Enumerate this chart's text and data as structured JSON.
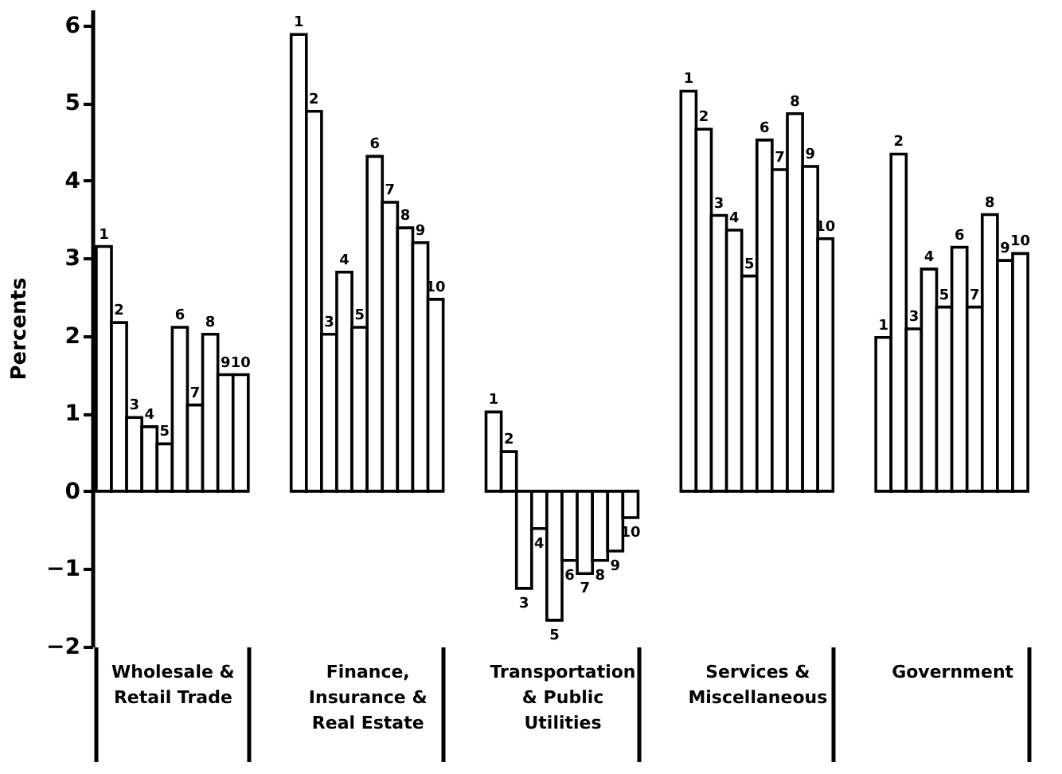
{
  "chart_data": {
    "type": "bar",
    "ylabel": "Percents",
    "categories": [
      "Wholesale & Retail Trade",
      "Finance, Insurance & Real Estate",
      "Transportation & Public Utilities",
      "Services & Miscellaneous",
      "Government"
    ],
    "series": [
      {
        "name": "1",
        "color": "#ffffff",
        "values": [
          3.15,
          5.88,
          1.02,
          5.15,
          1.98
        ]
      },
      {
        "name": "2",
        "color": "#ffffff",
        "values": [
          2.17,
          4.89,
          0.51,
          4.66,
          4.34
        ]
      },
      {
        "name": "3",
        "color": "#ffffff",
        "values": [
          0.95,
          2.02,
          -1.25,
          3.55,
          2.09
        ]
      },
      {
        "name": "4",
        "color": "#ffffff",
        "values": [
          0.83,
          2.82,
          -0.48,
          3.36,
          2.86
        ]
      },
      {
        "name": "5",
        "color": "#ffffff",
        "values": [
          0.61,
          2.11,
          -1.66,
          2.77,
          2.37
        ]
      },
      {
        "name": "6",
        "color": "#ffffff",
        "values": [
          2.11,
          4.31,
          -0.89,
          4.52,
          3.14
        ]
      },
      {
        "name": "7",
        "color": "#ffffff",
        "values": [
          1.11,
          3.72,
          -1.06,
          4.14,
          2.37
        ]
      },
      {
        "name": "8",
        "color": "#ffffff",
        "values": [
          2.02,
          3.39,
          -0.89,
          4.86,
          3.56
        ]
      },
      {
        "name": "9",
        "color": "#ffffff",
        "values": [
          1.5,
          3.2,
          -0.77,
          4.18,
          2.97
        ]
      },
      {
        "name": "10",
        "color": "#ffffff",
        "values": [
          1.5,
          2.47,
          -0.34,
          3.25,
          3.06
        ]
      }
    ],
    "ylim": [
      -2,
      6.2
    ],
    "yticks": [
      -2,
      -1,
      0,
      1,
      2,
      3,
      4,
      5,
      6
    ],
    "grid": false,
    "legend": false
  }
}
